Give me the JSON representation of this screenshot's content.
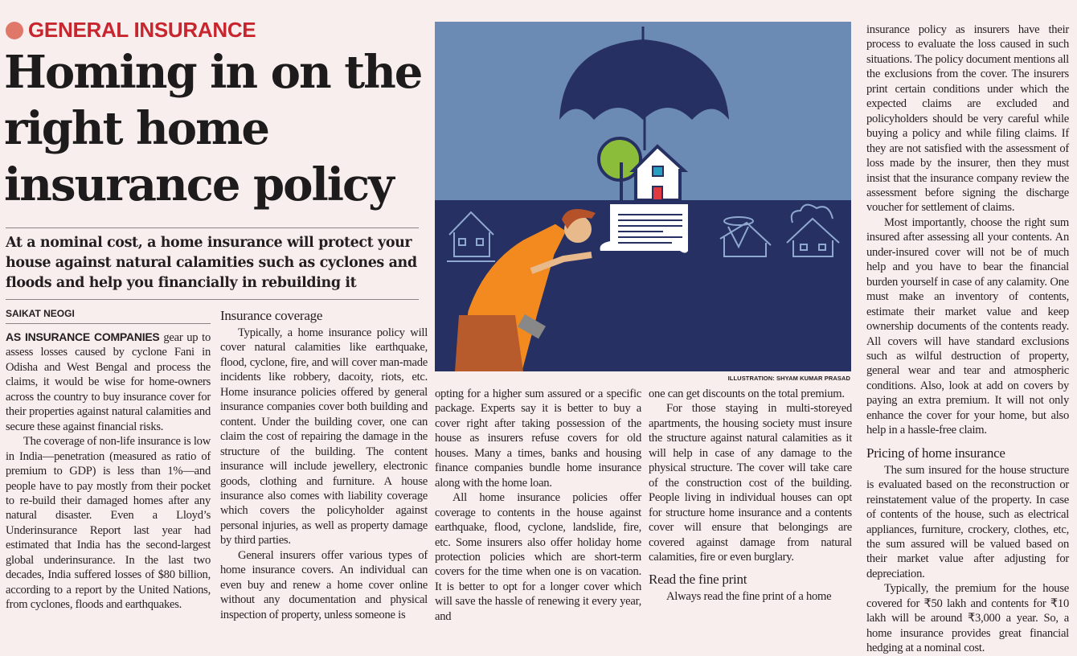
{
  "section": {
    "label": "GENERAL INSURANCE",
    "accent": "#c8262e",
    "dot_color": "#e0786a"
  },
  "headline": "Homing in on the right home insurance policy",
  "dek": "At a nominal cost, a home insurance will protect your house against natural calamities such as cyclones and floods and help you financially in rebuilding it",
  "byline": "SAIKAT NEOGI",
  "illustration": {
    "credit": "ILLUSTRATION: SHYAM KUMAR PRASAD",
    "sky_color": "#6b8ab4",
    "ground_color": "#263062",
    "icons": [
      "umbrella-icon",
      "house-icon",
      "tree-icon",
      "document-icon",
      "man-inspecting",
      "earthquake-house-icon",
      "cyclone-house-icon",
      "fire-house-icon"
    ]
  },
  "columns": [
    {
      "lead": "AS INSURANCE COMPANIES",
      "paragraphs": [
        "gear up to assess losses caused by cyclone Fani in Odisha and West Bengal and process the claims, it would be wise for home-owners across the country to buy insurance cover for their properties against natural calamities and secure these against financial risks.",
        "The coverage of non-life insurance is low in India—penetration (measured as ratio of premium to GDP) is less than 1%—and people have to pay mostly from their pocket to re-build their damaged homes after any natural disaster. Even a Lloyd’s Underinsurance Report last year had estimated that India has the second-largest global underinsurance. In the last two decades, India suffered losses of $80 billion, according to a report by the United Nations, from cyclones, floods and earthquakes."
      ]
    },
    {
      "heading": "Insurance coverage",
      "paragraphs": [
        "Typically, a home insurance policy will cover natural calamities like earthquake, flood, cyclone, fire, and will cover man-made incidents like robbery, dacoity, riots, etc. Home insurance policies offered by general insurance companies cover both building and content. Under the building cover, one can claim the cost of repairing the damage in the structure of the building. The content insurance will include jewellery, electronic goods, clothing and furniture. A house insurance also comes with liability coverage which covers the policyholder against personal injuries, as well as property damage by third parties.",
        "General insurers offer various types of home insurance covers. An individual can even buy and renew a home cover online without any documentation and physical inspection of property, unless someone is"
      ]
    },
    {
      "continuation": "opting for a higher sum assured or a specific package. Experts say it is better to buy a cover right after taking possession of the house as insurers refuse covers for old houses. Many a times, banks and housing finance companies bundle home insurance along with the home loan.",
      "paragraphs": [
        "All home insurance policies offer coverage to contents in the house against earthquake, flood, cyclone, landslide, fire, etc. Some insurers also offer holiday home protection policies which are short-term covers for the time when one is on vacation. It is better to opt for a longer cover which will save the hassle of renewing it every year, and"
      ]
    },
    {
      "continuation": "one can get discounts on the total premium.",
      "paragraphs": [
        "For those staying in multi-storeyed apartments, the housing society must insure the structure against natural calamities as it will help in case of any damage to the physical structure. The cover will take care of the construction cost of the building. People living in individual houses can opt for structure home insurance and a contents cover will ensure that belongings are covered against damage from natural calamities, fire or even burglary."
      ],
      "heading": "Read the fine print",
      "paragraphs_after": [
        "Always read the fine print of a home"
      ]
    },
    {
      "continuation": "insurance policy as insurers have their process to evaluate the loss caused in such situations. The policy document mentions all the exclusions from the cover. The insurers print certain conditions under which the expected claims are excluded and policyholders should be very careful while buying a policy and while filing claims. If they are not satisfied with the assessment of loss made by the insurer, then they must insist that the insurance company review the assessment before signing the discharge voucher for settlement of claims.",
      "paragraphs": [
        "Most importantly, choose the right sum insured after assessing all your contents. An under-insured cover will not be of much help and you have to bear the financial burden yourself in case of any calamity. One must make an inventory of contents, estimate their market value and keep ownership documents of the contents ready. All covers will have standard exclusions such as wilful destruction of property, general wear and tear and atmospheric conditions. Also, look at add on covers by paying an extra premium. It will not only enhance the cover for your home, but also help in a hassle-free claim."
      ],
      "heading": "Pricing of home insurance",
      "paragraphs_after": [
        "The sum insured for the house structure is evaluated based on the reconstruction or reinstatement value of the property. In case of contents of the house, such as electrical appliances, furniture, crockery, clothes, etc, the sum assured will be valued based on their market value after adjusting for depreciation.",
        "Typically, the premium for the house covered for ₹50 lakh and contents for ₹10 lakh will be around ₹3,000 a year. So, a home insurance provides great financial hedging at a nominal cost."
      ]
    }
  ]
}
